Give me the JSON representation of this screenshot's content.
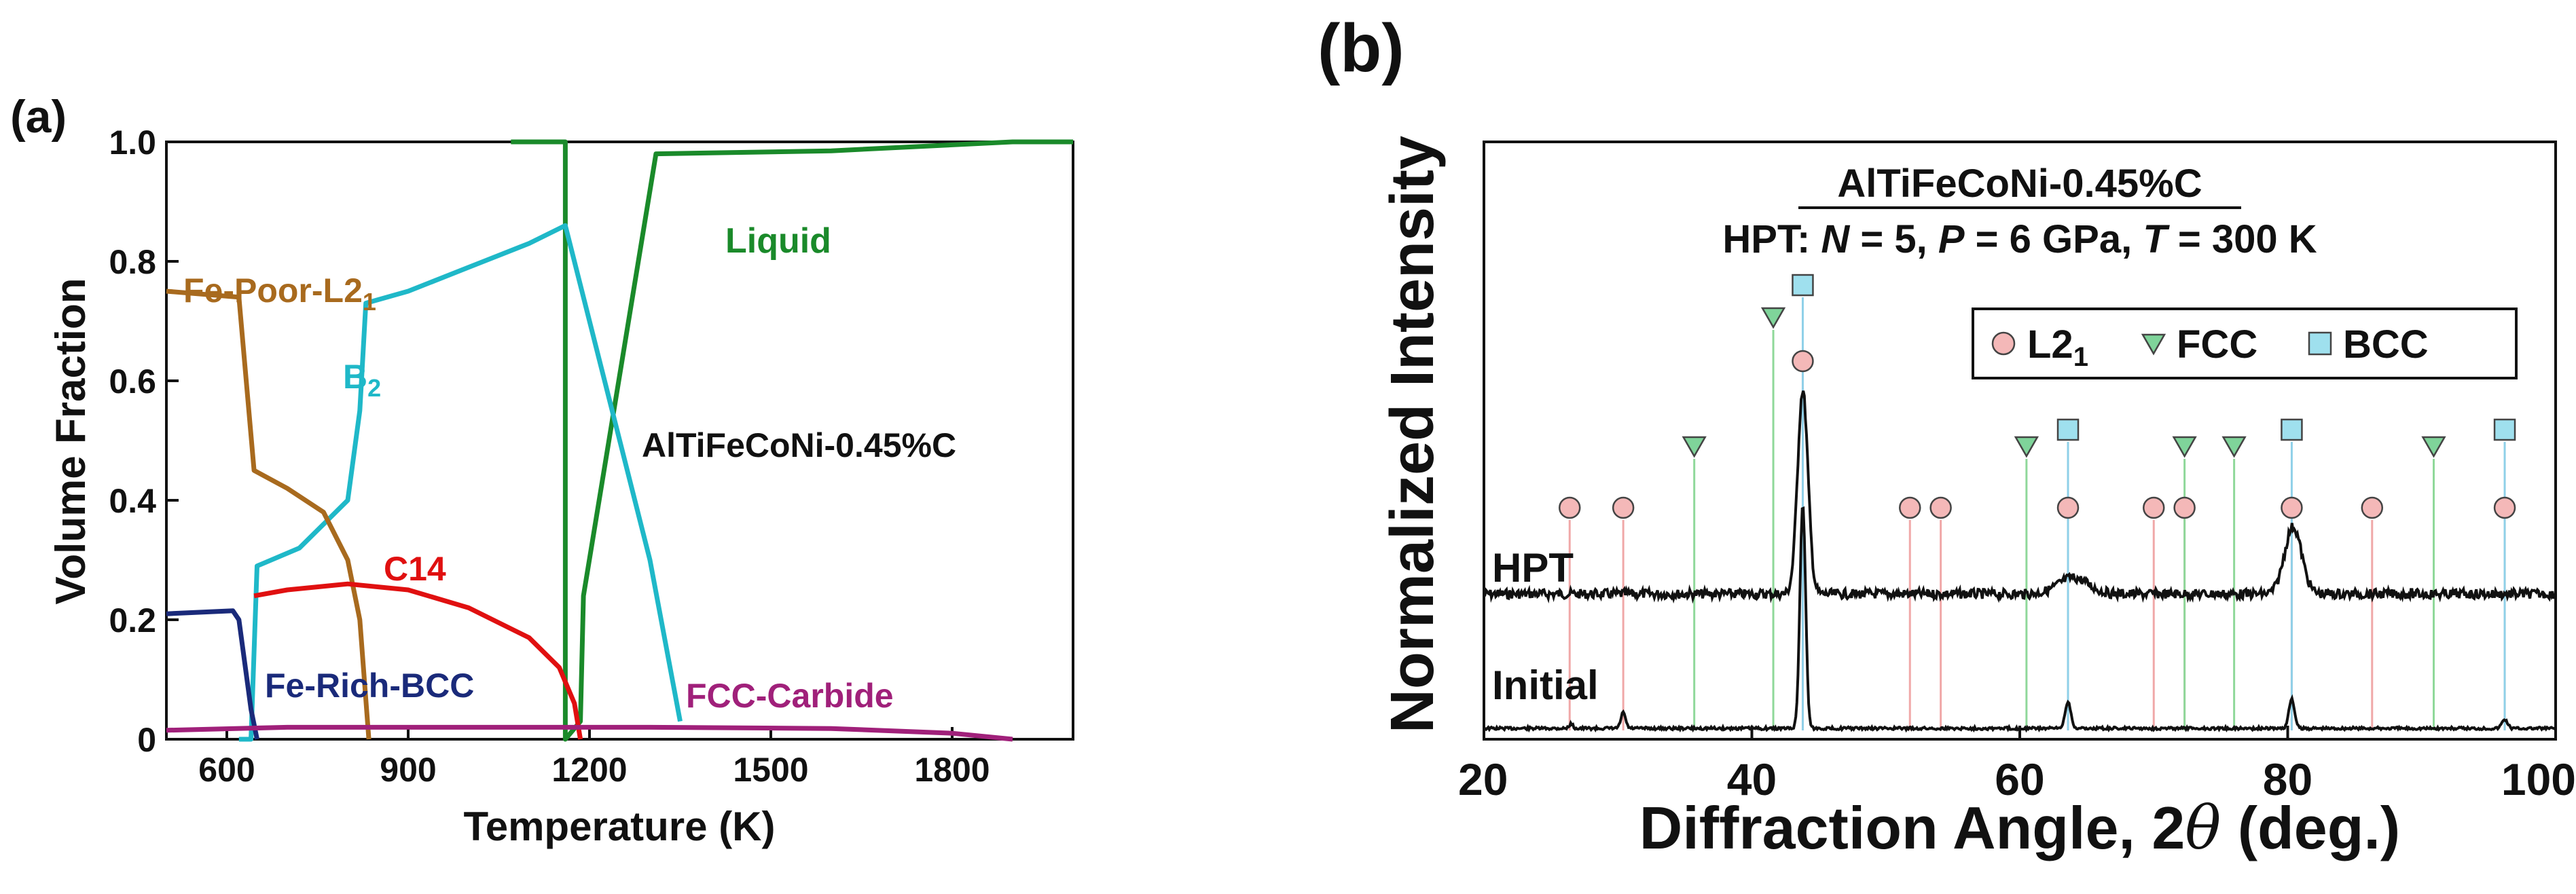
{
  "colors": {
    "liquid": "#1a8a2a",
    "b2": "#1fb8c8",
    "fe_poor_l21": "#a86a1e",
    "c14": "#e01010",
    "fe_rich_bcc": "#1a2a7a",
    "fcc_carbide": "#a0207a",
    "l21_marker": "#f4b8b8",
    "fcc_marker": "#7fd49a",
    "bcc_marker": "#9fe0ee",
    "l21_line": "#f0a8a8",
    "fcc_line": "#8fd89a",
    "bcc_line": "#8fd0e8"
  },
  "chart_data": [
    {
      "panel_label": "(a)",
      "type": "line",
      "xlabel": "Temperature (K)",
      "ylabel": "Volume Fraction",
      "xlim": [
        500,
        2000
      ],
      "ylim": [
        0,
        1.0
      ],
      "xticks": [
        600,
        900,
        1200,
        1500,
        1800
      ],
      "xtick_labels": [
        "600",
        "900",
        "1200",
        "1500",
        "1800"
      ],
      "yticks": [
        0,
        0.2,
        0.4,
        0.6,
        0.8,
        1.0
      ],
      "ytick_labels": [
        "0",
        "0.2",
        "0.4",
        "0.6",
        "0.8",
        "1.0"
      ],
      "annotation": "AlTiFeCoNi-0.45%C",
      "series": [
        {
          "name": "Liquid",
          "label_text": "Liquid",
          "color_key": "liquid",
          "x": [
            1070,
            1160,
            1160,
            1160,
            1185,
            1190,
            1310,
            1600,
            1900,
            2000
          ],
          "y": [
            1.0,
            1.0,
            1.0,
            0.0,
            0.03,
            0.24,
            0.98,
            0.985,
            1.0,
            1.0
          ]
        },
        {
          "name": "B2",
          "label_text": "B",
          "label_sub": "2",
          "color_key": "b2",
          "x": [
            620,
            640,
            650,
            720,
            800,
            820,
            830,
            900,
            1000,
            1100,
            1160,
            1200,
            1300,
            1350
          ],
          "y": [
            0.0,
            0.0,
            0.29,
            0.32,
            0.4,
            0.55,
            0.73,
            0.75,
            0.79,
            0.83,
            0.86,
            0.7,
            0.3,
            0.03
          ]
        },
        {
          "name": "Fe-Poor-L21",
          "label_text": "Fe-Poor-L2",
          "label_sub": "1",
          "color_key": "fe_poor_l21",
          "x": [
            500,
            620,
            645,
            700,
            760,
            800,
            820,
            835
          ],
          "y": [
            0.75,
            0.74,
            0.45,
            0.42,
            0.38,
            0.3,
            0.2,
            0.0
          ]
        },
        {
          "name": "C14",
          "label_text": "C14",
          "color_key": "c14",
          "x": [
            645,
            700,
            800,
            900,
            1000,
            1100,
            1150,
            1175,
            1185
          ],
          "y": [
            0.24,
            0.25,
            0.26,
            0.25,
            0.22,
            0.17,
            0.12,
            0.06,
            0.0
          ]
        },
        {
          "name": "Fe-Rich-BCC",
          "label_text": "Fe-Rich-BCC",
          "color_key": "fe_rich_bcc",
          "x": [
            500,
            610,
            620,
            640,
            650
          ],
          "y": [
            0.21,
            0.215,
            0.2,
            0.05,
            0.0
          ]
        },
        {
          "name": "FCC-Carbide",
          "label_text": "FCC-Carbide",
          "color_key": "fcc_carbide",
          "x": [
            500,
            700,
            1000,
            1300,
            1600,
            1800,
            1900
          ],
          "y": [
            0.015,
            0.02,
            0.02,
            0.02,
            0.018,
            0.01,
            0.0
          ]
        }
      ]
    },
    {
      "panel_label": "(b)",
      "type": "line",
      "xlabel_main": "Diffraction Angle, 2",
      "xlabel_theta": "θ",
      "xlabel_unit": " (deg.)",
      "ylabel": "Normalized Intensity",
      "xlim": [
        20,
        100
      ],
      "xticks": [
        20,
        40,
        60,
        80,
        100
      ],
      "xtick_labels": [
        "20",
        "40",
        "60",
        "80",
        "100"
      ],
      "title_line1": "AlTiFeCoNi-0.45%C",
      "title_line2_parts": [
        "HPT: ",
        "N",
        " = 5, ",
        "P",
        " = 6 GPa, ",
        "T",
        " = 300 K"
      ],
      "legend": [
        {
          "label": "L2",
          "sub": "1",
          "marker": "circle"
        },
        {
          "label": "FCC",
          "marker": "triangle"
        },
        {
          "label": "BCC",
          "marker": "square"
        }
      ],
      "series": [
        {
          "name": "HPT",
          "label_text": "HPT",
          "baseline": 0.0,
          "peaks": [
            {
              "x": 43.8,
              "h": 1.0,
              "w": 0.55
            },
            {
              "x": 64.0,
              "h": 0.08,
              "w": 1.6
            },
            {
              "x": 80.4,
              "h": 0.33,
              "w": 0.9
            }
          ]
        },
        {
          "name": "Initial",
          "label_text": "Initial",
          "baseline": 0.0,
          "peaks": [
            {
              "x": 26.5,
              "h": 0.02,
              "w": 0.2
            },
            {
              "x": 30.4,
              "h": 0.07,
              "w": 0.25
            },
            {
              "x": 43.8,
              "h": 1.0,
              "w": 0.3
            },
            {
              "x": 63.6,
              "h": 0.12,
              "w": 0.3
            },
            {
              "x": 80.3,
              "h": 0.13,
              "w": 0.3
            },
            {
              "x": 96.2,
              "h": 0.04,
              "w": 0.3
            }
          ]
        }
      ],
      "markers": {
        "L21": [
          26.4,
          30.4,
          43.8,
          51.8,
          54.1,
          63.6,
          70.0,
          72.3,
          80.3,
          86.3,
          96.2
        ],
        "FCC": [
          35.7,
          41.6,
          60.5,
          72.3,
          76.0,
          90.9
        ],
        "BCC": [
          43.8,
          63.6,
          80.3,
          96.2
        ]
      }
    }
  ]
}
